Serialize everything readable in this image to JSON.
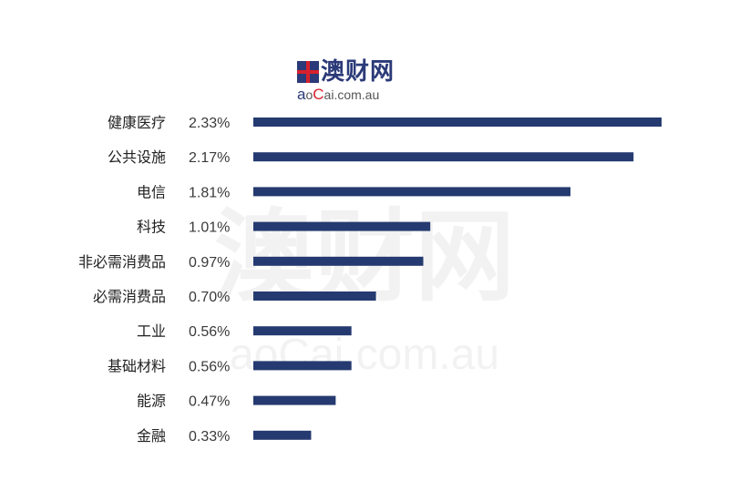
{
  "logo": {
    "name": "澳财网",
    "url_part1": "a",
    "url_part2": "o",
    "url_part3": "C",
    "url_part4": "ai.com.au"
  },
  "watermark": {
    "name": "澳财网",
    "url": "aoCai.com.au"
  },
  "colors": {
    "bar": "#253a70",
    "label": "#222222",
    "value": "#3a3a3a"
  },
  "chart_data": {
    "type": "bar",
    "orientation": "horizontal",
    "title": "",
    "xlabel": "",
    "ylabel": "",
    "xlim": [
      0,
      2.33
    ],
    "grid": false,
    "categories": [
      "健康医疗",
      "公共设施",
      "电信",
      "科技",
      "非必需消费品",
      "必需消费品",
      "工业",
      "基础材料",
      "能源",
      "金融"
    ],
    "values": [
      2.33,
      2.17,
      1.81,
      1.01,
      0.97,
      0.7,
      0.56,
      0.56,
      0.47,
      0.33
    ],
    "value_labels": [
      "2.33%",
      "2.17%",
      "1.81%",
      "1.01%",
      "0.97%",
      "0.70%",
      "0.56%",
      "0.56%",
      "0.47%",
      "0.33%"
    ]
  }
}
